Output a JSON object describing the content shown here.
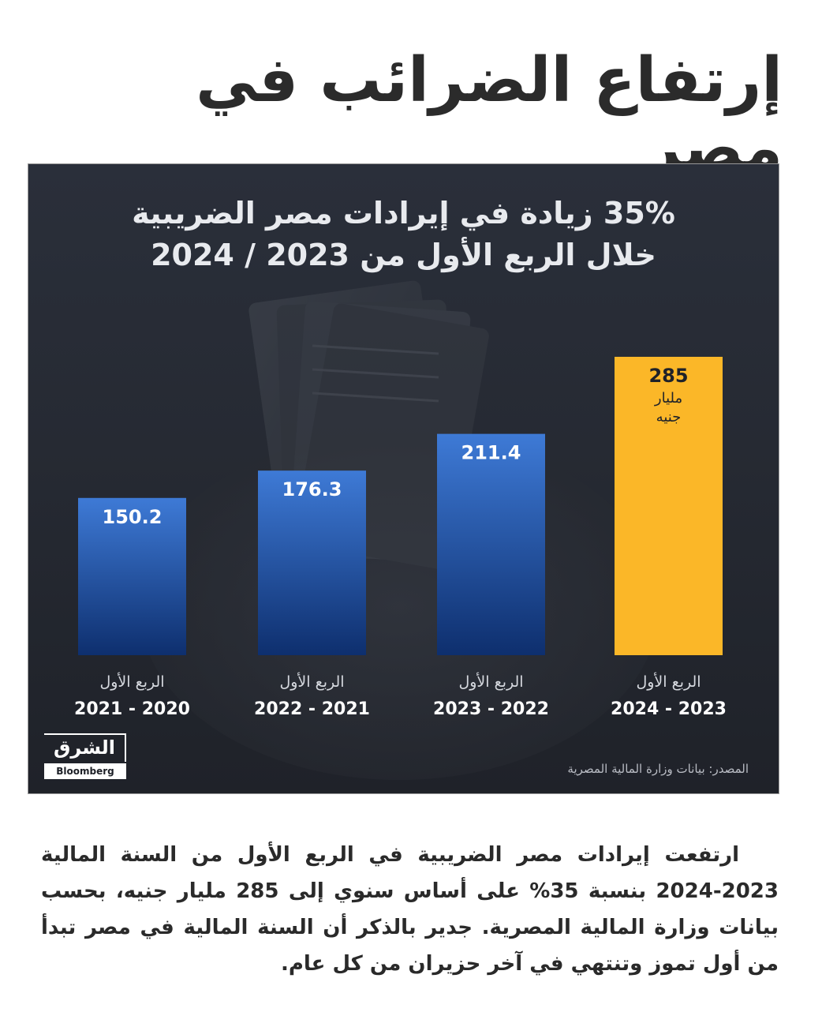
{
  "headline": "إرتفاع  الضرائب في مصر",
  "chart": {
    "title_line1": "35% زيادة في إيرادات مصر الضريبية",
    "title_line2": "خلال الربع الأول من 2023 / 2024",
    "source": "المصدر: بيانات وزارة المالية المصرية",
    "logo_ar": "الشرق",
    "logo_en": "Bloomberg",
    "colors": {
      "blue_top": "#3e7ad6",
      "blue_bottom": "#0e2f6e",
      "highlight": "#fbb728"
    }
  },
  "chart_data": {
    "type": "bar",
    "title": "35% زيادة في إيرادات مصر الضريبية خلال الربع الأول من 2023 / 2024",
    "categories": [
      {
        "line1": "الربع الأول",
        "line2": "2021 - 2020"
      },
      {
        "line1": "الربع الأول",
        "line2": "2022 - 2021"
      },
      {
        "line1": "الربع الأول",
        "line2": "2023 - 2022"
      },
      {
        "line1": "الربع الأول",
        "line2": "2024 - 2023"
      }
    ],
    "values": [
      150.2,
      176.3,
      211.4,
      285
    ],
    "value_labels": [
      "150.2",
      "176.3",
      "211.4",
      "285"
    ],
    "unit_label_lines": [
      "مليار",
      "جنيه"
    ],
    "highlight_index": 3,
    "ylim": [
      0,
      285
    ],
    "grid": false,
    "legend": "none"
  },
  "article": {
    "text": "ارتفعت إيرادات مصر الضريبية في الربع الأول من السنة المالية 2023-2024 بنسبة 35% على أساس سنوي إلى 285 مليار جنيه، بحسب بيانات وزارة المالية المصرية. جدير بالذكر أن السنة المالية في مصر تبدأ من أول تموز وتنتهي في آخر حزيران من كل عام."
  }
}
